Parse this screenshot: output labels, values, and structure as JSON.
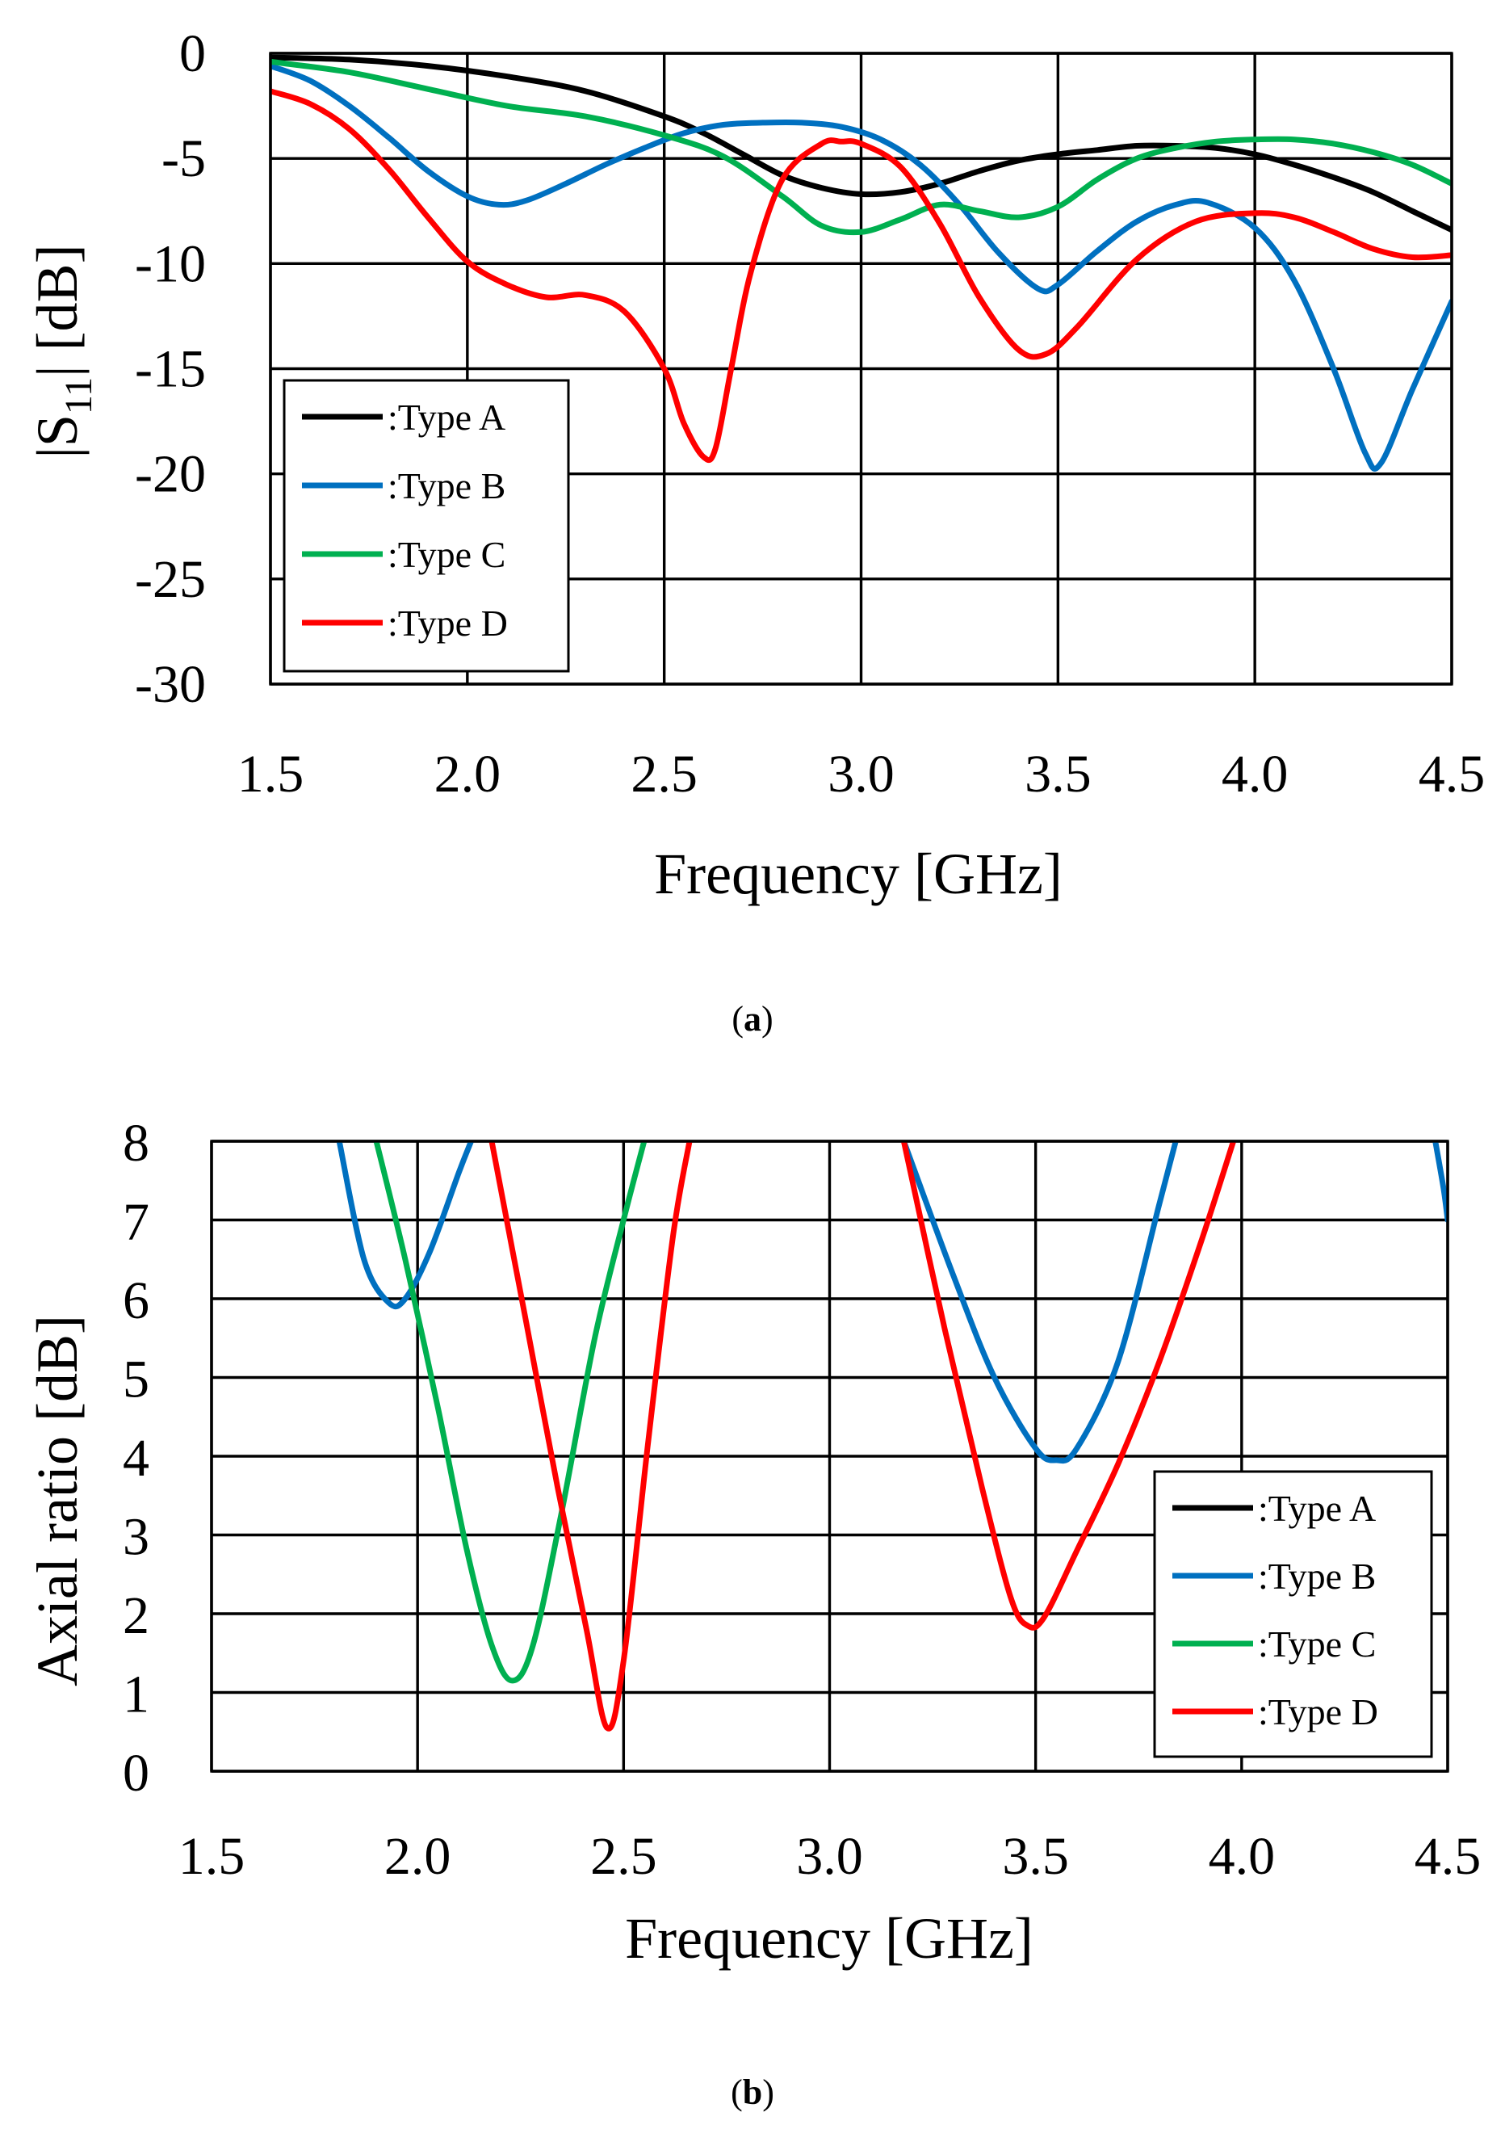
{
  "chart_data": [
    {
      "type": "line",
      "panel": "a",
      "caption": "(a)",
      "caption_letter": "a",
      "xlabel": "Frequency [GHz]",
      "ylabel": "|S11| [dB]",
      "ylabel_main": "|S",
      "ylabel_sub": "11",
      "ylabel_tail": "| [dB]",
      "xlim": [
        1.5,
        4.5
      ],
      "ylim": [
        -30,
        0
      ],
      "xticks": [
        "1.5",
        "2.0",
        "2.5",
        "3.0",
        "3.5",
        "4.0",
        "4.5"
      ],
      "yticks": [
        "0",
        "-5",
        "-10",
        "-15",
        "-20",
        "-25",
        "-30"
      ],
      "grid": true,
      "legend": "bottom-left",
      "series": [
        {
          "name": ":Type A",
          "color": "#000000",
          "x": [
            1.5,
            1.7,
            1.9,
            2.1,
            2.3,
            2.5,
            2.6,
            2.7,
            2.8,
            2.9,
            3.0,
            3.1,
            3.2,
            3.3,
            3.4,
            3.5,
            3.6,
            3.7,
            3.8,
            3.9,
            4.0,
            4.1,
            4.2,
            4.3,
            4.4,
            4.5
          ],
          "y": [
            -0.2,
            -0.3,
            -0.6,
            -1.1,
            -1.8,
            -3.0,
            -3.8,
            -4.8,
            -5.8,
            -6.4,
            -6.7,
            -6.6,
            -6.2,
            -5.6,
            -5.1,
            -4.8,
            -4.6,
            -4.4,
            -4.4,
            -4.5,
            -4.8,
            -5.3,
            -5.9,
            -6.6,
            -7.5,
            -8.4
          ]
        },
        {
          "name": ":Type B",
          "color": "#0070C0",
          "x": [
            1.5,
            1.6,
            1.7,
            1.8,
            1.9,
            2.0,
            2.08,
            2.15,
            2.25,
            2.35,
            2.45,
            2.55,
            2.65,
            2.75,
            2.85,
            2.95,
            3.05,
            3.15,
            3.25,
            3.35,
            3.45,
            3.5,
            3.6,
            3.7,
            3.8,
            3.88,
            4.0,
            4.1,
            4.2,
            4.28,
            4.32,
            4.4,
            4.5
          ],
          "y": [
            -0.6,
            -1.3,
            -2.5,
            -4.0,
            -5.6,
            -6.8,
            -7.2,
            -7.0,
            -6.2,
            -5.3,
            -4.5,
            -3.8,
            -3.4,
            -3.3,
            -3.3,
            -3.5,
            -4.1,
            -5.3,
            -7.2,
            -9.5,
            -11.2,
            -11.0,
            -9.4,
            -8.0,
            -7.2,
            -7.1,
            -8.3,
            -10.8,
            -15.0,
            -19.0,
            -19.5,
            -16.0,
            -11.8
          ]
        },
        {
          "name": ":Type C",
          "color": "#00B050",
          "x": [
            1.5,
            1.7,
            1.9,
            2.1,
            2.3,
            2.5,
            2.65,
            2.8,
            2.9,
            3.0,
            3.1,
            3.2,
            3.3,
            3.4,
            3.5,
            3.6,
            3.7,
            3.8,
            3.9,
            4.0,
            4.1,
            4.2,
            4.3,
            4.4,
            4.5
          ],
          "y": [
            -0.4,
            -0.9,
            -1.7,
            -2.5,
            -3.0,
            -3.9,
            -4.9,
            -6.8,
            -8.2,
            -8.5,
            -7.9,
            -7.2,
            -7.5,
            -7.8,
            -7.3,
            -6.0,
            -5.0,
            -4.5,
            -4.2,
            -4.1,
            -4.1,
            -4.3,
            -4.7,
            -5.3,
            -6.2
          ]
        },
        {
          "name": ":Type D",
          "color": "#FF0000",
          "x": [
            1.5,
            1.6,
            1.7,
            1.8,
            1.9,
            2.0,
            2.1,
            2.2,
            2.3,
            2.4,
            2.5,
            2.55,
            2.6,
            2.63,
            2.67,
            2.72,
            2.8,
            2.9,
            2.95,
            3.0,
            3.1,
            3.2,
            3.3,
            3.4,
            3.47,
            3.55,
            3.7,
            3.85,
            4.0,
            4.1,
            4.2,
            4.3,
            4.4,
            4.5
          ],
          "y": [
            -1.8,
            -2.4,
            -3.6,
            -5.5,
            -7.8,
            -9.9,
            -11.0,
            -11.6,
            -11.5,
            -12.3,
            -15.0,
            -17.6,
            -19.2,
            -18.8,
            -15.0,
            -10.4,
            -6.0,
            -4.3,
            -4.2,
            -4.3,
            -5.4,
            -8.1,
            -11.6,
            -14.1,
            -14.3,
            -13.0,
            -9.8,
            -8.0,
            -7.6,
            -7.8,
            -8.5,
            -9.3,
            -9.7,
            -9.6
          ]
        }
      ]
    },
    {
      "type": "line",
      "panel": "b",
      "caption": "(b)",
      "caption_letter": "b",
      "xlabel": "Frequency [GHz]",
      "ylabel": "Axial ratio [dB]",
      "xlim": [
        1.5,
        4.5
      ],
      "ylim": [
        0,
        8
      ],
      "xticks": [
        "1.5",
        "2.0",
        "2.5",
        "3.0",
        "3.5",
        "4.0",
        "4.5"
      ],
      "yticks": [
        "8",
        "7",
        "6",
        "5",
        "4",
        "3",
        "2",
        "1",
        "0"
      ],
      "grid": true,
      "legend": "bottom-right",
      "series": [
        {
          "name": ":Type A",
          "color": "#000000",
          "x": [],
          "y": []
        },
        {
          "name": ":Type B",
          "color": "#0070C0",
          "segments": [
            {
              "x": [
                1.81,
                1.87,
                1.93,
                1.97,
                2.03,
                2.1,
                2.13
              ],
              "y": [
                8.0,
                6.5,
                5.95,
                6.0,
                6.6,
                7.6,
                8.0
              ]
            },
            {
              "x": [
                3.18,
                3.3,
                3.4,
                3.5,
                3.55,
                3.6,
                3.7,
                3.8,
                3.84
              ],
              "y": [
                8.0,
                6.3,
                5.0,
                4.1,
                3.95,
                4.1,
                5.2,
                7.2,
                8.0
              ]
            },
            {
              "x": [
                4.47,
                4.49,
                4.5
              ],
              "y": [
                8.0,
                7.4,
                7.0
              ]
            }
          ]
        },
        {
          "name": ":Type C",
          "color": "#00B050",
          "x": [
            1.9,
            1.97,
            2.05,
            2.12,
            2.18,
            2.23,
            2.28,
            2.35,
            2.43,
            2.5,
            2.55
          ],
          "y": [
            8.0,
            6.5,
            4.6,
            2.8,
            1.6,
            1.15,
            1.6,
            3.3,
            5.5,
            7.0,
            8.0
          ]
        },
        {
          "name": ":Type D",
          "color": "#FF0000",
          "segments": [
            {
              "x": [
                2.18,
                2.26,
                2.34,
                2.41,
                2.46,
                2.5,
                2.56,
                2.62,
                2.66
              ],
              "y": [
                8.0,
                5.8,
                3.6,
                1.8,
                0.55,
                1.4,
                4.2,
                6.8,
                8.0
              ]
            },
            {
              "x": [
                3.18,
                3.28,
                3.37,
                3.44,
                3.48,
                3.52,
                3.6,
                3.7,
                3.8,
                3.9,
                3.98
              ],
              "y": [
                8.0,
                5.6,
                3.6,
                2.2,
                1.85,
                1.95,
                2.8,
                3.9,
                5.2,
                6.7,
                8.0
              ]
            }
          ]
        }
      ]
    }
  ]
}
